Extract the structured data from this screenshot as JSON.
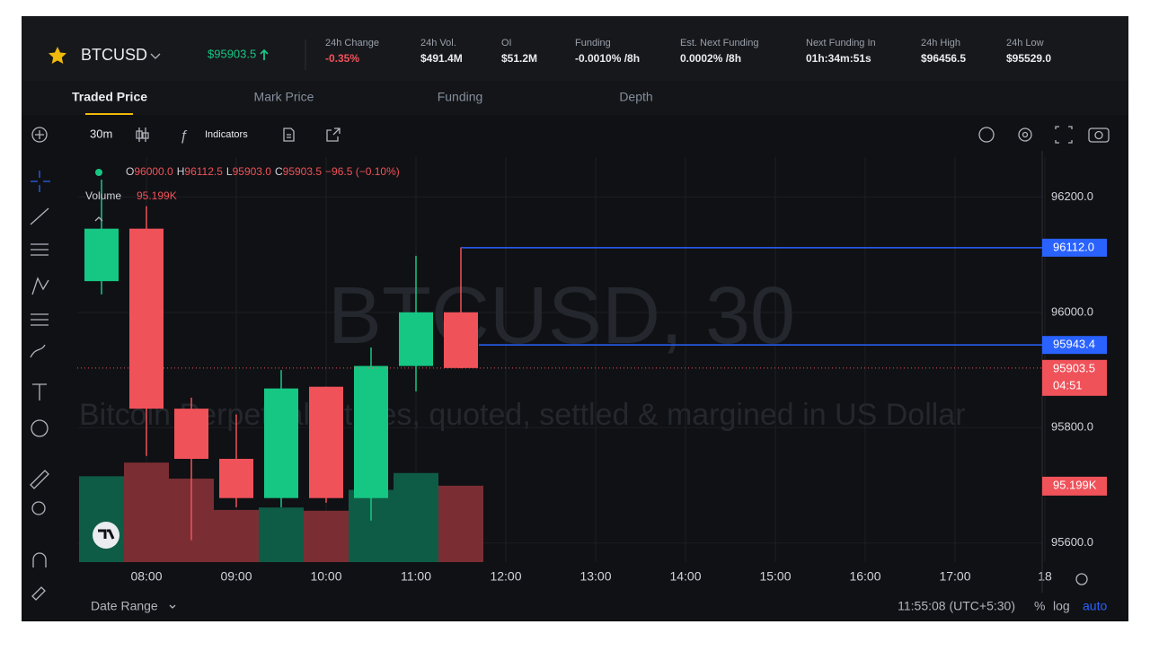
{
  "header": {
    "symbol": "BTCUSD",
    "price": "$95903.5",
    "stats": [
      {
        "label": "24h Change",
        "value": "-0.35%"
      },
      {
        "label": "24h Vol.",
        "value": "$491.4M"
      },
      {
        "label": "OI",
        "value": "$51.2M"
      },
      {
        "label": "Funding",
        "value": "-0.0010% /8h"
      },
      {
        "label": "Est. Next Funding",
        "value": "0.0002% /8h"
      },
      {
        "label": "Next Funding In",
        "value": "01h:34m:51s"
      },
      {
        "label": "24h High",
        "value": "$96456.5"
      },
      {
        "label": "24h Low",
        "value": "$95529.0"
      }
    ]
  },
  "tabs": [
    "Traded Price",
    "Mark Price",
    "Funding",
    "Depth"
  ],
  "toolbar": {
    "interval": "30m",
    "indicators": "Indicators"
  },
  "chart_data": {
    "type": "candlestick",
    "watermark": "BTCUSD, 30",
    "watermark_subtitle": "Bitcoin Perpetual futures, quoted, settled & margined in US Dollar",
    "legend": {
      "items": [
        {
          "key": "O",
          "value": "96000.0"
        },
        {
          "key": "H",
          "value": "96112.5"
        },
        {
          "key": "L",
          "value": "95903.0"
        },
        {
          "key": "C",
          "value": "95903.5"
        }
      ],
      "change": "−96.5 (−0.10%)"
    },
    "volume_label": "Volume",
    "volume_value": "95.199K",
    "up_color": "#16c784",
    "down_color": "#f0525a",
    "up_volume_color": "#0f5c46",
    "down_volume_color": "#7a2e33",
    "candles": [
      {
        "o": 96054,
        "h": 96230,
        "l": 96031,
        "c": 96145,
        "v": 107
      },
      {
        "o": 96145,
        "h": 96184,
        "l": 95751,
        "c": 95833,
        "v": 124
      },
      {
        "o": 95833,
        "h": 95852,
        "l": 95605,
        "c": 95746,
        "v": 104
      },
      {
        "o": 95746,
        "h": 95823,
        "l": 95662,
        "c": 95678,
        "v": 65
      },
      {
        "o": 95678,
        "h": 95900,
        "l": 95662,
        "c": 95868,
        "v": 68
      },
      {
        "o": 95871,
        "h": 95871,
        "l": 95670,
        "c": 95678,
        "v": 64
      },
      {
        "o": 95678,
        "h": 95939,
        "l": 95639,
        "c": 95907,
        "v": 90
      },
      {
        "o": 95907,
        "h": 96098,
        "l": 95863,
        "c": 96000,
        "v": 111
      },
      {
        "o": 96000,
        "h": 96112.5,
        "l": 95903,
        "c": 95903.5,
        "v": 95.199
      }
    ],
    "ylim": [
      95567,
      96269
    ],
    "yticks": [
      {
        "value": 95600,
        "label": "95600.0"
      },
      {
        "value": 95800,
        "label": "95800.0"
      },
      {
        "value": 96000,
        "label": "96000.0"
      },
      {
        "value": 96200,
        "label": "96200.0"
      }
    ],
    "volume_lim": [
      0,
      320
    ],
    "x_labels": [
      "08:00",
      "09:00",
      "10:00",
      "11:00",
      "12:00",
      "13:00",
      "14:00",
      "15:00",
      "16:00",
      "17:00",
      "18"
    ],
    "price_lines": [
      {
        "value": 96112.0,
        "label": "96112.0",
        "color": "#2962ff"
      },
      {
        "value": 95943.4,
        "label": "95943.4",
        "color": "#2962ff"
      }
    ],
    "last_price": {
      "value": 95903.5,
      "label": "95903.5",
      "countdown": "04:51"
    },
    "volume_marker": {
      "value": 95.199,
      "label": "95.199K"
    }
  },
  "footer": {
    "date_range": "Date Range",
    "clock": "11:55:08 (UTC+5:30)",
    "percent": "%",
    "log": "log",
    "auto": "auto"
  }
}
